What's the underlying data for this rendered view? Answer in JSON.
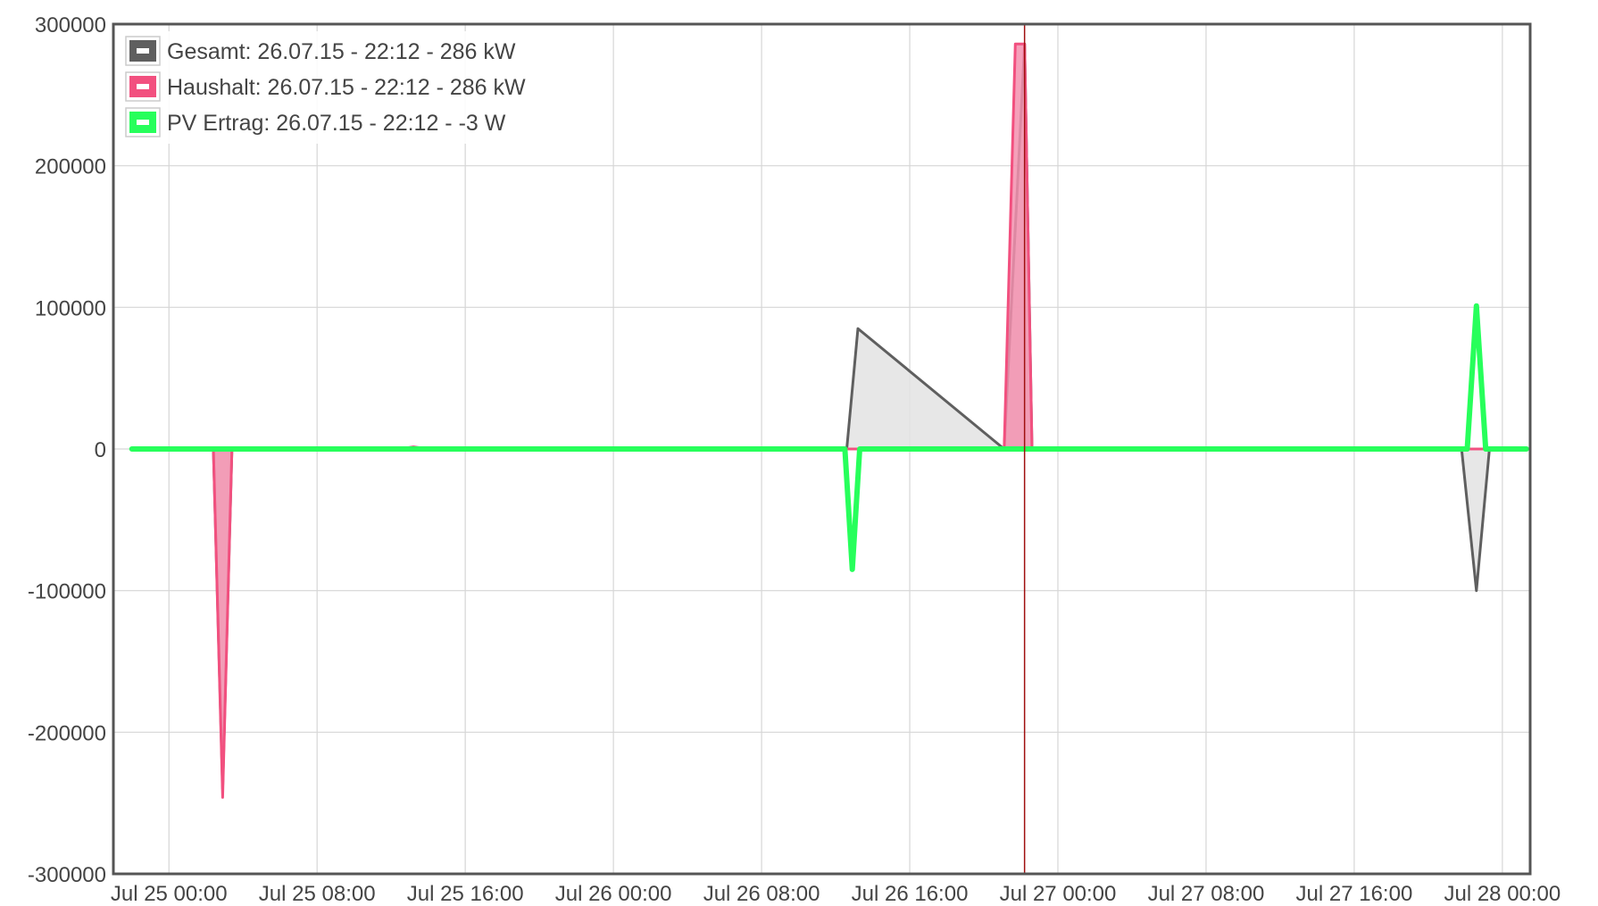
{
  "chart_data": {
    "type": "line",
    "title": "",
    "xlabel": "",
    "ylabel": "",
    "ylim": [
      -300000,
      300000
    ],
    "yticks": [
      300000,
      200000,
      100000,
      0,
      -100000,
      -200000,
      -300000
    ],
    "ytick_labels": [
      "300000",
      "200000",
      "100000",
      "0",
      "-100000",
      "-200000",
      "-300000"
    ],
    "xlim_hours": [
      -3.0,
      73.5
    ],
    "xticks_hours": [
      0,
      8,
      16,
      24,
      32,
      40,
      48,
      56,
      64,
      72
    ],
    "xtick_labels": [
      "Jul 25 00:00",
      "Jul 25 08:00",
      "Jul 25 16:00",
      "Jul 26 00:00",
      "Jul 26 08:00",
      "Jul 26 16:00",
      "Jul 27 00:00",
      "Jul 27 08:00",
      "Jul 27 16:00",
      "Jul 28 00:00"
    ],
    "x_unit": "hours since Jul 25 00:00",
    "grid": true,
    "legend_position": "top-left",
    "cursor_hours": 46.2,
    "series": [
      {
        "name": "Gesamt",
        "legend_label": "Gesamt: 26.07.15 - 22:12 - 286 kW",
        "color": "#5f5f5f",
        "fill": "#e3e3e3",
        "x": [
          -2,
          2.4,
          2.9,
          3.4,
          13,
          16,
          35.0,
          36.6,
          37.2,
          45.1,
          46.2,
          46.6,
          63.8,
          65.3,
          69.8,
          70.6,
          71.3,
          73.3
        ],
        "y": [
          0,
          0,
          -240000,
          0,
          0,
          0,
          0,
          0,
          85000,
          0,
          286000,
          0,
          0,
          0,
          0,
          -100000,
          0,
          0
        ]
      },
      {
        "name": "Haushalt",
        "legend_label": "Haushalt: 26.07.15 - 22:12 - 286 kW",
        "color": "#f2507f",
        "fill": "#f38fae",
        "x": [
          -2,
          2.4,
          2.9,
          3.4,
          12.5,
          13.2,
          14,
          16,
          45.1,
          45.7,
          46.2,
          46.6,
          73.3
        ],
        "y": [
          0,
          0,
          -246000,
          0,
          0,
          1500,
          0,
          0,
          0,
          286000,
          286000,
          0,
          0
        ]
      },
      {
        "name": "PV Ertrag",
        "legend_label": "PV Ertrag: 26.07.15 - 22:12 - -3 W",
        "color": "#27ff5b",
        "fill": "#27ff5b",
        "x": [
          -2,
          36.5,
          36.9,
          37.3,
          70.1,
          70.6,
          71.1,
          73.3
        ],
        "y": [
          0,
          0,
          -85000,
          0,
          0,
          101000,
          0,
          0
        ]
      }
    ]
  }
}
